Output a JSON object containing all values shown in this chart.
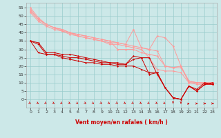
{
  "background_color": "#cce8e8",
  "grid_color": "#99cccc",
  "xlabel": "Vent moyen/en rafales ( km/h )",
  "x_ticks": [
    0,
    1,
    2,
    3,
    4,
    5,
    6,
    7,
    8,
    9,
    10,
    11,
    12,
    13,
    14,
    15,
    16,
    17,
    18,
    19,
    20,
    21,
    22,
    23
  ],
  "y_ticks": [
    0,
    5,
    10,
    15,
    20,
    25,
    30,
    35,
    40,
    45,
    50,
    55
  ],
  "ylim": [
    -5,
    58
  ],
  "xlim": [
    -0.5,
    23.5
  ],
  "lines_light": [
    [
      55,
      49,
      45,
      43,
      42,
      40,
      39,
      38,
      37,
      36,
      35,
      34,
      33,
      32,
      31,
      30,
      29,
      20,
      19,
      20,
      11,
      10,
      10,
      10
    ],
    [
      54,
      48,
      45,
      43,
      42,
      40,
      39,
      38,
      37,
      36,
      35,
      30,
      30,
      30,
      28,
      27,
      26,
      20,
      19,
      19,
      11,
      10,
      9,
      9
    ],
    [
      53,
      48,
      45,
      43,
      41,
      40,
      38,
      37,
      36,
      35,
      34,
      34,
      33,
      42,
      31,
      30,
      38,
      37,
      32,
      20,
      10,
      10,
      10,
      10
    ],
    [
      52,
      47,
      44,
      42,
      41,
      39,
      38,
      37,
      36,
      35,
      33,
      33,
      32,
      31,
      30,
      25,
      18,
      17,
      17,
      16,
      10,
      9,
      9,
      9
    ]
  ],
  "lines_dark": [
    [
      35,
      34,
      28,
      28,
      27,
      27,
      26,
      25,
      24,
      23,
      22,
      22,
      21,
      26,
      25,
      25,
      15,
      7,
      1,
      0,
      8,
      5,
      9,
      9
    ],
    [
      35,
      33,
      27,
      27,
      26,
      25,
      25,
      24,
      23,
      22,
      22,
      21,
      21,
      24,
      25,
      15,
      16,
      7,
      1,
      0,
      8,
      5,
      9,
      10
    ],
    [
      35,
      28,
      27,
      27,
      25,
      24,
      23,
      22,
      22,
      21,
      21,
      20,
      20,
      20,
      18,
      16,
      16,
      7,
      1,
      0,
      8,
      6,
      10,
      9
    ]
  ],
  "light_color": "#ff9999",
  "dark_color": "#cc0000",
  "marker_size_light": 1.8,
  "marker_size_dark": 1.5,
  "linewidth": 0.7,
  "xlabel_fontsize": 5.5,
  "tick_fontsize": 4.5
}
